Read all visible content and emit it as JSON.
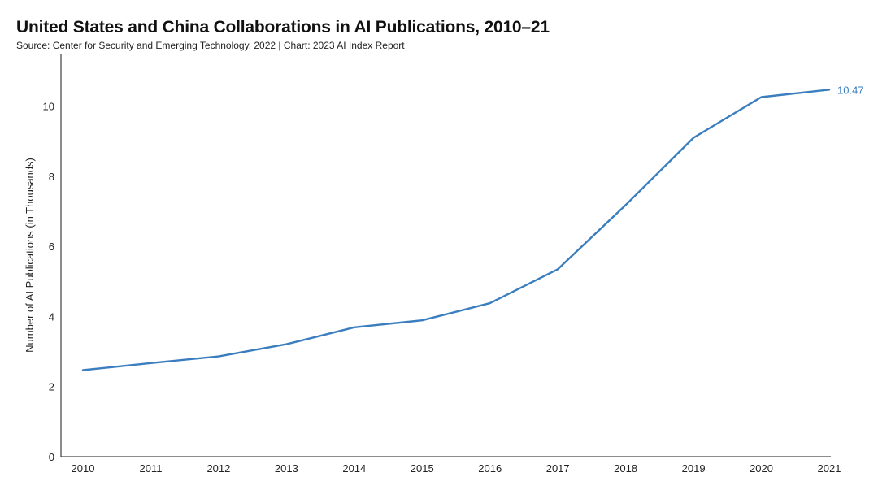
{
  "chart_data": {
    "type": "line",
    "title": "United States and China Collaborations in AI Publications, 2010–21",
    "subtitle": "Source: Center for Security and Emerging Technology, 2022 | Chart: 2023 AI Index Report",
    "xlabel": "",
    "ylabel": "Number of AI Publications (in Thousands)",
    "x": [
      "2010",
      "2011",
      "2012",
      "2013",
      "2014",
      "2015",
      "2016",
      "2017",
      "2018",
      "2019",
      "2020",
      "2021"
    ],
    "series": [
      {
        "values": [
          2.47,
          2.67,
          2.86,
          3.21,
          3.69,
          3.89,
          4.38,
          5.35,
          7.18,
          9.1,
          10.26,
          10.47
        ],
        "color": "#3a7ebf",
        "end_label": "10.47"
      }
    ],
    "ylim": [
      0,
      11.5
    ],
    "yticks": [
      "0",
      "2",
      "4",
      "6",
      "8",
      "10"
    ],
    "grid": false,
    "legend": "none"
  }
}
